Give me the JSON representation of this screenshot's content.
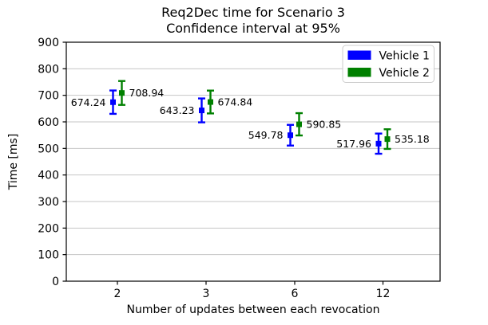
{
  "chart_data": {
    "type": "scatter",
    "subtype": "errorbar",
    "title": "Req2Dec time for Scenario 3",
    "subtitle": "Confidence interval at 95%",
    "xlabel": "Number of updates between each revocation",
    "ylabel": "Time [ms]",
    "categories": [
      "2",
      "3",
      "6",
      "12"
    ],
    "ylim": [
      0,
      900
    ],
    "ytick_step": 100,
    "ytick_labels": [
      "0",
      "100",
      "200",
      "300",
      "400",
      "500",
      "600",
      "700",
      "800",
      "900"
    ],
    "grid": "horizontal-only",
    "legend_position": "upper-right",
    "series": [
      {
        "name": "Vehicle 1",
        "color": "#0000ff",
        "values": [
          674.24,
          643.23,
          549.78,
          517.96
        ],
        "errors": [
          44,
          45,
          39,
          38
        ],
        "point_labels": [
          "674.24",
          "643.23",
          "549.78",
          "517.96"
        ],
        "label_side": "left"
      },
      {
        "name": "Vehicle 2",
        "color": "#008000",
        "values": [
          708.94,
          674.84,
          590.85,
          535.18
        ],
        "errors": [
          45,
          43,
          42,
          37
        ],
        "point_labels": [
          "708.94",
          "674.84",
          "590.85",
          "535.18"
        ],
        "label_side": "right"
      }
    ]
  },
  "colors": {
    "background": "#ffffff",
    "grid": "#c6c6c6",
    "axis": "#000000",
    "legend_border": "#cccccc",
    "legend_fill": "#ffffff",
    "text": "#000000"
  }
}
